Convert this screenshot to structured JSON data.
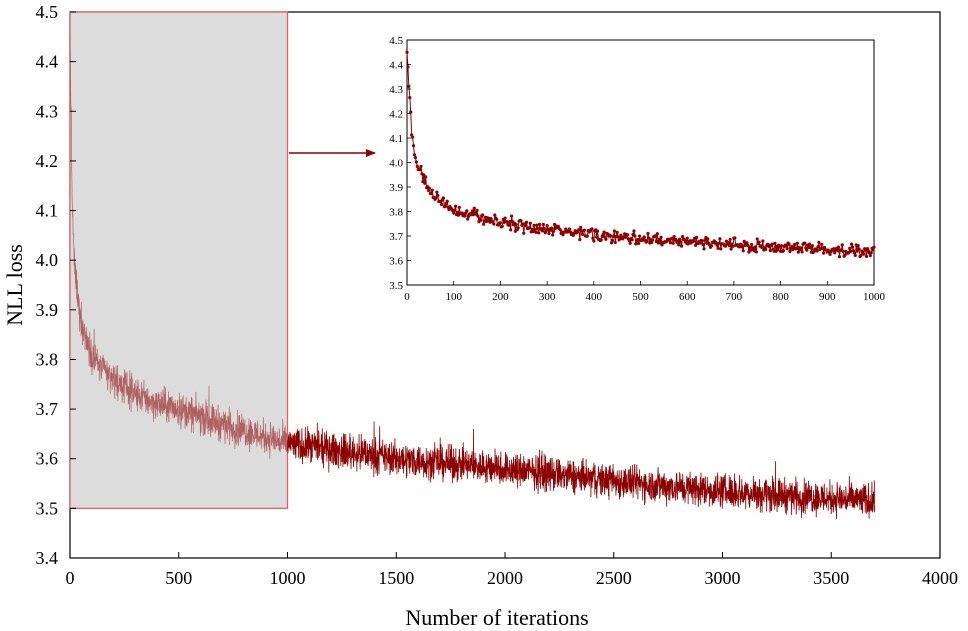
{
  "chart_data": {
    "type": "line",
    "xlabel": "Number of iterations",
    "ylabel": "NLL  loss",
    "xlim": [
      0,
      4000
    ],
    "ylim": [
      3.4,
      4.5
    ],
    "xticks": [
      "0",
      "500",
      "1000",
      "1500",
      "2000",
      "2500",
      "3000",
      "3500",
      "4000"
    ],
    "yticks": [
      "3.4",
      "3.5",
      "3.6",
      "3.7",
      "3.8",
      "3.9",
      "4.0",
      "4.1",
      "4.2",
      "4.3",
      "4.4",
      "4.5"
    ],
    "grid": false,
    "line_color": "#8b0000",
    "highlight": {
      "x_range": [
        0,
        1000
      ],
      "y_range": [
        3.5,
        4.5
      ],
      "fill": "#dcdcdc",
      "stroke": "#e06060"
    },
    "trend": {
      "x": [
        0,
        5,
        10,
        20,
        40,
        60,
        100,
        150,
        200,
        300,
        400,
        500,
        700,
        1000,
        1500,
        2000,
        2500,
        3000,
        3500,
        3700
      ],
      "y": [
        4.45,
        4.3,
        4.12,
        3.99,
        3.91,
        3.86,
        3.81,
        3.78,
        3.76,
        3.73,
        3.71,
        3.7,
        3.67,
        3.63,
        3.6,
        3.58,
        3.555,
        3.535,
        3.52,
        3.515
      ]
    },
    "noise_amplitude": 0.028,
    "max_iteration": 3700,
    "inset": {
      "type": "line",
      "xlim": [
        0,
        1000
      ],
      "ylim": [
        3.5,
        4.5
      ],
      "xticks": [
        "0",
        "100",
        "200",
        "300",
        "400",
        "500",
        "600",
        "700",
        "800",
        "900",
        "1000"
      ],
      "yticks": [
        "3.5",
        "3.6",
        "3.7",
        "3.8",
        "3.9",
        "4.0",
        "4.1",
        "4.2",
        "4.3",
        "4.4",
        "4.5"
      ],
      "marker": "circle",
      "trend": {
        "x": [
          0,
          5,
          10,
          20,
          40,
          60,
          100,
          150,
          200,
          300,
          400,
          500,
          700,
          1000
        ],
        "y": [
          4.45,
          4.3,
          4.12,
          4.0,
          3.91,
          3.86,
          3.81,
          3.78,
          3.76,
          3.725,
          3.705,
          3.69,
          3.665,
          3.635
        ]
      },
      "noise_amplitude": 0.02
    }
  }
}
